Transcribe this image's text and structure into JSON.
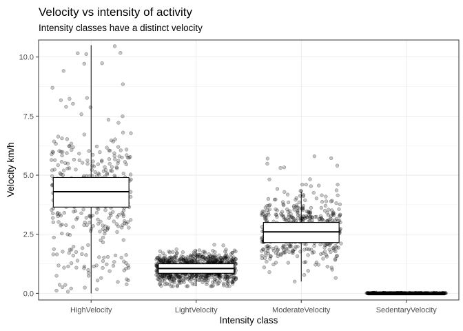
{
  "chart_data": {
    "type": "boxplot",
    "title": "Velocity vs intensity of activity",
    "subtitle": "Intensity classes have a distinct velocity",
    "xlabel": "Intensity class",
    "ylabel": "Velocity km/h",
    "categories": [
      "HighVelocity",
      "LightVelocity",
      "ModerateVelocity",
      "SedentaryVelocity"
    ],
    "ylim": [
      -0.28,
      10.72
    ],
    "yticks": [
      0,
      2.5,
      5,
      7.5,
      10
    ],
    "ytick_labels": [
      "0.0",
      "2.5",
      "5.0",
      "7.5",
      "10.0"
    ],
    "grid": true,
    "boxes": [
      {
        "category": "HighVelocity",
        "min": 0.0,
        "q1": 3.65,
        "median": 4.3,
        "q3": 4.9,
        "max": 10.5
      },
      {
        "category": "LightVelocity",
        "min": 0.3,
        "q1": 0.85,
        "median": 1.05,
        "q3": 1.25,
        "max": 1.85
      },
      {
        "category": "ModerateVelocity",
        "min": 0.5,
        "q1": 2.15,
        "median": 2.6,
        "q3": 3.0,
        "max": 4.3
      },
      {
        "category": "SedentaryVelocity",
        "min": 0.0,
        "q1": 0.0,
        "median": 0.0,
        "q3": 0.0,
        "max": 0.0
      }
    ],
    "jitter_points": "semi-transparent grey points jittered horizontally around each box"
  }
}
